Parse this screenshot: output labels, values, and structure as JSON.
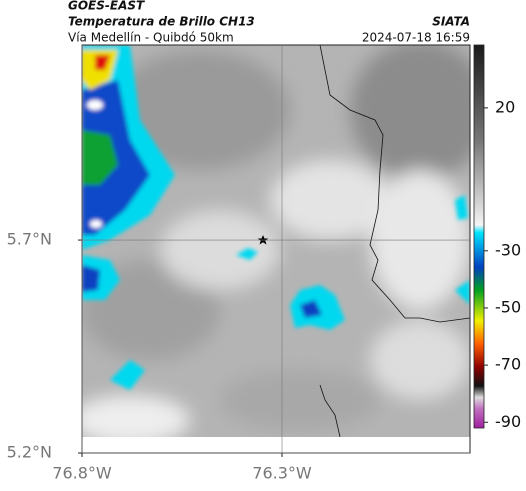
{
  "header": {
    "source": "GOES-EAST",
    "title": "Temperatura de Brillo CH13",
    "subtitle": "Vía Medellín - Quibdó 50km",
    "org": "SIATA",
    "datetime": "2024-07-18 16:59"
  },
  "map": {
    "latlim": [
      5.2,
      6.158
    ],
    "lonlim": [
      -76.8,
      -75.83
    ],
    "latticks": [
      {
        "value": 5.2,
        "label": "5.2°N"
      },
      {
        "value": 5.7,
        "label": "5.7°N"
      }
    ],
    "lonticks": [
      {
        "value": -76.8,
        "label": "76.8°W"
      },
      {
        "value": -76.3,
        "label": "76.3°W"
      }
    ],
    "grid": true
  },
  "colorbar": {
    "lim": [
      42,
      -92
    ],
    "ticks": [
      20,
      -30,
      -50,
      -70,
      -90
    ]
  }
}
